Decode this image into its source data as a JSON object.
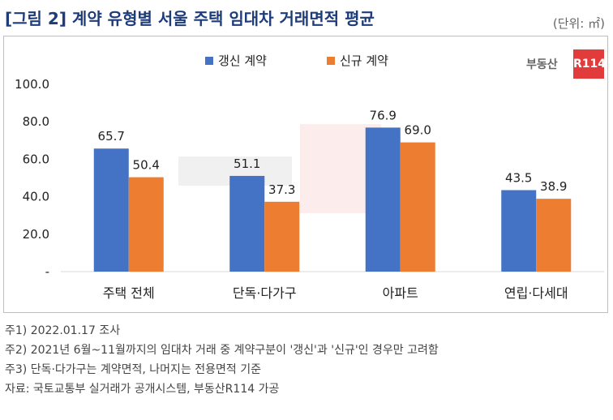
{
  "title": "[그림 2] 계약 유형별 서울 주택 임대차 거래면적 평균",
  "unit": "(단위: ㎡)",
  "brand": {
    "text": "부동산",
    "box_text": "R114"
  },
  "colors": {
    "renewal": "#4472c4",
    "new": "#ed7d31",
    "title": "#1f3c7a",
    "axis": "#d9d9d9"
  },
  "chart_data": {
    "type": "bar",
    "title": "",
    "xlabel": "",
    "ylabel": "",
    "ylim": [
      0,
      100
    ],
    "yticks": [
      0,
      20,
      40,
      60,
      80,
      100
    ],
    "ytick_labels": [
      "-",
      "20.0",
      "40.0",
      "60.0",
      "80.0",
      "100.0"
    ],
    "grid": false,
    "legend": "top-center",
    "categories": [
      "주택 전체",
      "단독·다가구",
      "아파트",
      "연립·다세대"
    ],
    "series": [
      {
        "name": "갱신 계약",
        "values": [
          65.7,
          51.1,
          76.9,
          43.5
        ],
        "labels": [
          "65.7",
          "51.1",
          "76.9",
          "43.5"
        ]
      },
      {
        "name": "신규 계약",
        "values": [
          50.4,
          37.3,
          69.0,
          38.9
        ],
        "labels": [
          "50.4",
          "37.3",
          "69.0",
          "38.9"
        ]
      }
    ]
  },
  "notes": [
    "주1) 2022.01.17 조사",
    "주2) 2021년 6월~11월까지의 임대차 거래 중 계약구분이 '갱신'과 '신규'인 경우만 고려함",
    "주3) 단독·다가구는 계약면적, 나머지는 전용면적 기준",
    "자료: 국토교통부 실거래가 공개시스템, 부동산R114 가공"
  ]
}
